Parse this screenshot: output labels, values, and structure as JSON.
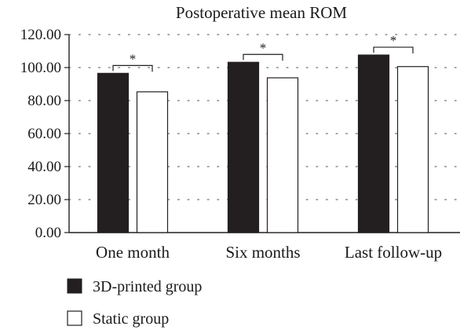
{
  "chart_data": {
    "type": "bar",
    "title": "Postoperative mean ROM",
    "xlabel": "",
    "ylabel": "",
    "categories": [
      "One month",
      "Six months",
      "Last follow-up"
    ],
    "series": [
      {
        "name": "3D-printed group",
        "values": [
          96.5,
          103.2,
          107.6
        ],
        "color": "#231f20"
      },
      {
        "name": "Static group",
        "values": [
          85.3,
          93.8,
          100.6
        ],
        "color": "#ffffff"
      }
    ],
    "ylim": [
      0,
      120
    ],
    "yticks": [
      "0.00",
      "20.00",
      "40.00",
      "60.00",
      "80.00",
      "100.00",
      "120.00"
    ],
    "grid": "dotted",
    "legend_position": "bottom-left",
    "annotations": [
      "*",
      "*",
      "*"
    ]
  }
}
